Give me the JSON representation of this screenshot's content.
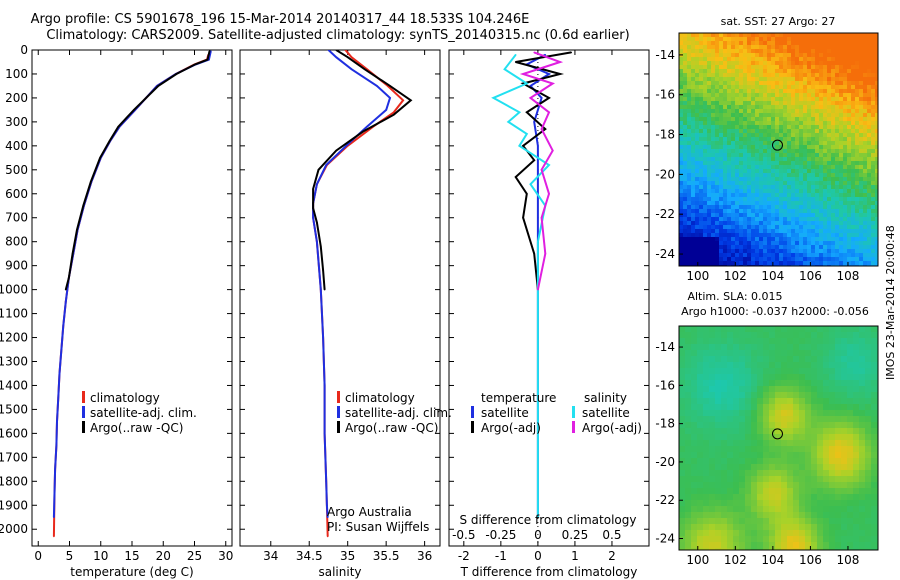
{
  "header": {
    "line1": "Argo profile: CS 5901678_196 15-Mar-2014 20140317_44 18.533S 104.246E",
    "line2": "Climatology: CARS2009. Satellite-adjusted climatology: synTS_20140315.nc (0.6d earlier)"
  },
  "colors": {
    "climatology": "#e8291c",
    "satellite": "#1f2fe0",
    "argo": "#000000",
    "sat_salinity": "#22e0f0",
    "argo_salinity": "#e01fe0"
  },
  "chart_data": [
    {
      "id": "temperature",
      "type": "line",
      "xlabel": "temperature (deg C)",
      "ylabel": "",
      "xlim": [
        -1,
        31
      ],
      "ylim": [
        2070,
        0
      ],
      "xticks": [
        0,
        5,
        10,
        15,
        20,
        25,
        30
      ],
      "yticks": [
        0,
        100,
        200,
        300,
        400,
        500,
        600,
        700,
        800,
        900,
        1000,
        1100,
        1200,
        1300,
        1400,
        1500,
        1600,
        1700,
        1800,
        1900,
        2000
      ],
      "legend": [
        "climatology",
        "satellite-adj. clim.",
        "Argo(..raw -QC)"
      ],
      "legend_position": "lower-center",
      "series": [
        {
          "name": "climatology",
          "color": "#e8291c",
          "x": [
            27.2,
            27.0,
            25.0,
            22.0,
            19.0,
            15.5,
            13.0,
            11.5,
            10.0,
            8.5,
            7.3,
            6.3,
            5.6,
            4.9,
            4.4,
            4.0,
            3.7,
            3.4,
            3.2,
            3.0,
            2.9,
            2.7,
            2.6,
            2.5
          ],
          "y": [
            20,
            40,
            60,
            100,
            150,
            250,
            320,
            380,
            450,
            550,
            650,
            750,
            850,
            950,
            1050,
            1150,
            1250,
            1350,
            1450,
            1550,
            1650,
            1750,
            1850,
            2030
          ]
        },
        {
          "name": "satellite-adj. clim.",
          "color": "#1f2fe0",
          "x": [
            27.6,
            27.3,
            25.2,
            22.0,
            19.0,
            15.5,
            13.0,
            11.5,
            10.0,
            8.5,
            7.3,
            6.3,
            5.6,
            4.9,
            4.4,
            4.0,
            3.7,
            3.4,
            3.2,
            3.0,
            2.9,
            2.7,
            2.6,
            2.5
          ],
          "y": [
            5,
            40,
            60,
            100,
            150,
            250,
            320,
            380,
            450,
            550,
            650,
            750,
            850,
            950,
            1050,
            1150,
            1250,
            1350,
            1450,
            1550,
            1650,
            1750,
            1850,
            1950
          ]
        },
        {
          "name": "Argo(..raw -QC)",
          "color": "#000000",
          "x": [
            27.4,
            27.1,
            25.1,
            22.1,
            19.2,
            15.3,
            12.8,
            11.4,
            9.9,
            8.4,
            7.2,
            6.2,
            5.5,
            4.9,
            4.4
          ],
          "y": [
            5,
            40,
            60,
            100,
            150,
            250,
            320,
            380,
            450,
            550,
            650,
            750,
            850,
            950,
            1000
          ]
        }
      ]
    },
    {
      "id": "salinity",
      "type": "line",
      "xlabel": "salinity",
      "ylabel": "",
      "xlim": [
        33.6,
        36.2
      ],
      "ylim": [
        2070,
        0
      ],
      "xticks": [
        34,
        34.5,
        35,
        35.5,
        36
      ],
      "legend": [
        "climatology",
        "satellite-adj. clim.",
        "Argo(..raw -QC)"
      ],
      "legend_position": "lower-center",
      "annotation": [
        "Argo Australia",
        "PI: Susan Wijffels"
      ],
      "series": [
        {
          "name": "climatology",
          "color": "#e8291c",
          "x": [
            34.97,
            35.05,
            35.25,
            35.52,
            35.72,
            35.6,
            35.33,
            35.0,
            34.73,
            34.6,
            34.55,
            34.55,
            34.6,
            34.65,
            34.68,
            34.7,
            34.7,
            34.72,
            34.73,
            34.74
          ],
          "y": [
            0,
            30,
            80,
            150,
            210,
            260,
            320,
            400,
            480,
            560,
            640,
            700,
            800,
            1000,
            1200,
            1400,
            1600,
            1800,
            1900,
            2030
          ]
        },
        {
          "name": "satellite-adj. clim.",
          "color": "#1f2fe0",
          "x": [
            34.75,
            34.85,
            35.05,
            35.38,
            35.55,
            35.5,
            35.25,
            34.98,
            34.72,
            34.6,
            34.55,
            34.55,
            34.6,
            34.65,
            34.68,
            34.7,
            34.7,
            34.72,
            34.73,
            34.74
          ],
          "y": [
            0,
            30,
            80,
            150,
            200,
            250,
            320,
            400,
            480,
            560,
            640,
            700,
            800,
            1000,
            1200,
            1400,
            1600,
            1800,
            1900,
            1950
          ]
        },
        {
          "name": "Argo(..raw -QC)",
          "color": "#000000",
          "x": [
            34.85,
            35.0,
            35.22,
            35.55,
            35.82,
            35.6,
            35.2,
            34.85,
            34.62,
            34.55,
            34.55,
            34.6,
            34.65,
            34.68,
            34.7
          ],
          "y": [
            0,
            30,
            80,
            150,
            210,
            270,
            340,
            420,
            500,
            580,
            660,
            720,
            820,
            920,
            1000
          ]
        }
      ]
    },
    {
      "id": "difference",
      "type": "line",
      "xlabel": "T difference from climatology",
      "xlabel_top": "S difference from climatology",
      "xlim": [
        -2.4,
        3.0
      ],
      "ylim": [
        2070,
        0
      ],
      "xticks": [
        -2,
        -1,
        0,
        1,
        2
      ],
      "xticks_s": [
        -0.5,
        -0.25,
        0,
        0.25,
        0.5
      ],
      "legend_temperature": {
        "title": "temperature",
        "entries": [
          "satellite",
          "Argo(-adj)"
        ]
      },
      "legend_salinity": {
        "title": "salinity",
        "entries": [
          "satellite",
          "Argo(-adj)"
        ]
      },
      "series": [
        {
          "name": "temperature satellite",
          "color": "#1f2fe0",
          "x": [
            0.2,
            -0.3,
            0.3,
            -0.2,
            0.1,
            -0.1,
            0.0,
            0.0,
            0.0,
            0.0,
            0.0,
            0.0,
            0.0
          ],
          "y": [
            20,
            60,
            100,
            150,
            200,
            300,
            400,
            500,
            700,
            900,
            1200,
            1600,
            1950
          ]
        },
        {
          "name": "temperature Argo(-adj)",
          "color": "#000000",
          "x": [
            0.9,
            -0.6,
            0.6,
            -0.4,
            0.3,
            -0.3,
            0.2,
            -0.4,
            -0.1,
            -0.6,
            -0.3,
            -0.4,
            -0.1,
            0.0
          ],
          "y": [
            10,
            50,
            100,
            140,
            200,
            260,
            330,
            400,
            460,
            530,
            600,
            700,
            850,
            1000
          ]
        },
        {
          "name": "salinity satellite",
          "color": "#22e0f0",
          "x": [
            -0.6,
            -0.9,
            -0.3,
            -1.2,
            -0.5,
            -0.8,
            -0.3,
            -0.5,
            0.3,
            -0.2,
            0.2,
            0.0,
            0.0,
            0.0,
            0.0
          ],
          "y": [
            20,
            80,
            140,
            200,
            260,
            300,
            350,
            400,
            480,
            560,
            650,
            800,
            1000,
            1500,
            1950
          ]
        },
        {
          "name": "salinity Argo(-adj)",
          "color": "#e01fe0",
          "x": [
            -0.1,
            0.6,
            -0.4,
            0.4,
            -0.2,
            0.3,
            0.1,
            0.4,
            0.1,
            0.3,
            0.1,
            0.2,
            0.0
          ],
          "y": [
            10,
            50,
            100,
            140,
            200,
            260,
            330,
            420,
            500,
            600,
            700,
            850,
            1000
          ]
        }
      ]
    },
    {
      "id": "sst_map",
      "type": "heatmap",
      "title": "sat. SST: 27 Argo: 27",
      "xlim": [
        99,
        109.6
      ],
      "ylim": [
        -24.6,
        -12.9
      ],
      "xticks": [
        100,
        102,
        104,
        106,
        108
      ],
      "yticks": [
        -14,
        -16,
        -18,
        -20,
        -22,
        -24
      ],
      "argo_position": {
        "lon": 104.246,
        "lat": -18.533
      }
    },
    {
      "id": "sla_map",
      "type": "heatmap",
      "title_line1": "Altim. SLA: 0.015",
      "title_line2": "Argo h1000: -0.037 h2000: -0.056",
      "xlim": [
        99,
        109.6
      ],
      "ylim": [
        -24.6,
        -12.9
      ],
      "xticks": [
        100,
        102,
        104,
        106,
        108
      ],
      "yticks": [
        -14,
        -16,
        -18,
        -20,
        -22,
        -24
      ],
      "argo_position": {
        "lon": 104.246,
        "lat": -18.533
      }
    }
  ],
  "stamp": "IMOS 23-Mar-2014 20:00:48"
}
